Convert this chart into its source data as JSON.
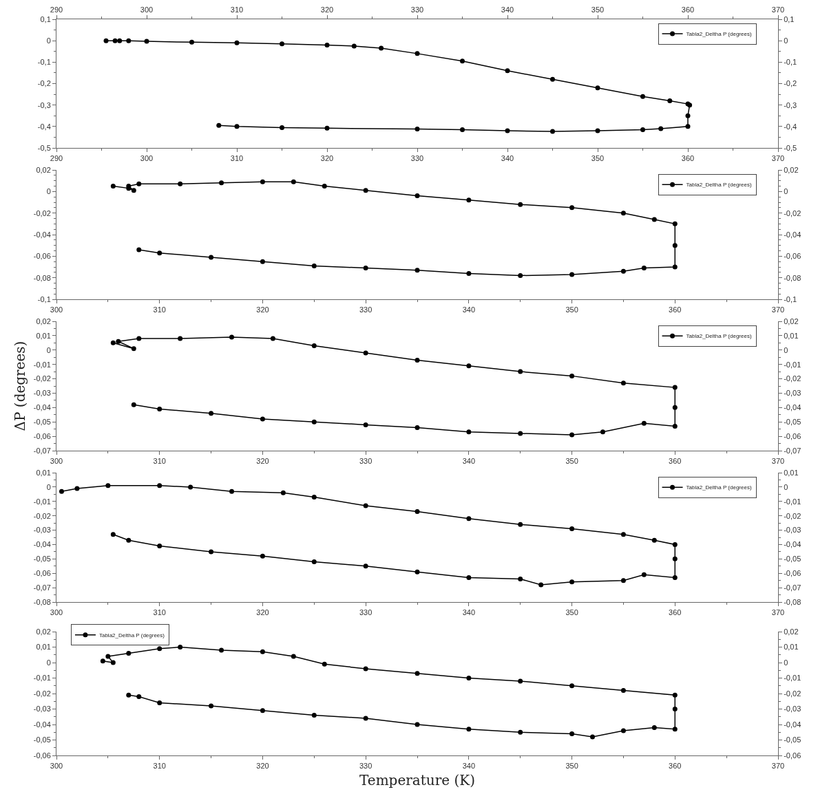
{
  "chart_data": [
    {
      "type": "line",
      "marker": "circle",
      "line_style": "solid",
      "legend": "top right",
      "xlim": [
        290,
        370
      ],
      "xticks": [
        290,
        300,
        310,
        320,
        330,
        340,
        350,
        360,
        370
      ],
      "x2lim": [
        290,
        370
      ],
      "x2ticks": [
        290,
        300,
        310,
        320,
        330,
        340,
        350,
        360,
        370
      ],
      "ylim": [
        -0.5,
        0.1
      ],
      "yticks": [
        {
          "value": -0.5,
          "label": "-0,5"
        },
        {
          "value": -0.4,
          "label": "-0,4"
        },
        {
          "value": -0.3,
          "label": "-0,3"
        },
        {
          "value": -0.2,
          "label": "-0,2"
        },
        {
          "value": -0.1,
          "label": "-0,1"
        },
        {
          "value": 0,
          "label": "0"
        },
        {
          "value": 0.1,
          "label": "0,1"
        }
      ],
      "y2lim": [
        -0.5,
        0.1
      ],
      "y2ticks": [
        {
          "value": -0.5,
          "label": "-0,5"
        },
        {
          "value": -0.4,
          "label": "-0,4"
        },
        {
          "value": -0.3,
          "label": "-0,3"
        },
        {
          "value": -0.2,
          "label": "-0,2"
        },
        {
          "value": -0.1,
          "label": "-0,1"
        },
        {
          "value": 0,
          "label": "0"
        },
        {
          "value": 0.1,
          "label": "0,1"
        }
      ],
      "series": [
        {
          "name": "Tabla2_Deltha P (degrees)",
          "color": "#000000",
          "x": [
            295.5,
            296.5,
            297,
            298,
            300,
            305,
            310,
            315,
            320,
            323,
            326,
            330,
            335,
            340,
            345,
            350,
            355,
            358,
            360,
            360.2,
            360,
            360,
            357,
            355,
            350,
            345,
            340,
            335,
            330,
            320,
            315,
            310,
            308
          ],
          "values": [
            0,
            0,
            0,
            0,
            -0.003,
            -0.007,
            -0.01,
            -0.015,
            -0.02,
            -0.025,
            -0.035,
            -0.06,
            -0.095,
            -0.14,
            -0.18,
            -0.22,
            -0.26,
            -0.28,
            -0.295,
            -0.3,
            -0.35,
            -0.4,
            -0.41,
            -0.415,
            -0.42,
            -0.423,
            -0.42,
            -0.415,
            -0.412,
            -0.408,
            -0.405,
            -0.4,
            -0.395
          ]
        }
      ]
    },
    {
      "type": "line",
      "marker": "circle",
      "line_style": "solid",
      "legend": "top right",
      "xlim": [
        300,
        370
      ],
      "xticks": [
        300,
        310,
        320,
        330,
        340,
        350,
        360,
        370
      ],
      "ylim": [
        -0.1,
        0.02
      ],
      "yticks": [
        {
          "value": -0.1,
          "label": "-0,1"
        },
        {
          "value": -0.08,
          "label": "-0,08"
        },
        {
          "value": -0.06,
          "label": "-0,06"
        },
        {
          "value": -0.04,
          "label": "-0,04"
        },
        {
          "value": -0.02,
          "label": "-0,02"
        },
        {
          "value": 0,
          "label": "0"
        },
        {
          "value": 0.02,
          "label": "0,02"
        }
      ],
      "y2lim": [
        -0.1,
        0.02
      ],
      "y2ticks": [
        {
          "value": -0.1,
          "label": "-0,1"
        },
        {
          "value": -0.08,
          "label": "-0,08"
        },
        {
          "value": -0.06,
          "label": "-0,06"
        },
        {
          "value": -0.04,
          "label": "-0,04"
        },
        {
          "value": -0.02,
          "label": "-0,02"
        },
        {
          "value": 0,
          "label": "0"
        },
        {
          "value": 0.02,
          "label": "0,02"
        }
      ],
      "series": [
        {
          "name": "Tabla2_Deltha P (degrees)",
          "color": "#000000",
          "x": [
            305.5,
            307,
            307.5,
            307,
            308,
            312,
            316,
            320,
            323,
            326,
            330,
            335,
            340,
            345,
            350,
            355,
            358,
            360,
            360,
            360,
            357,
            355,
            350,
            345,
            340,
            335,
            330,
            325,
            320,
            315,
            310,
            308
          ],
          "values": [
            0.005,
            0.003,
            0.001,
            0.005,
            0.007,
            0.007,
            0.008,
            0.009,
            0.009,
            0.005,
            0.001,
            -0.004,
            -0.008,
            -0.012,
            -0.015,
            -0.02,
            -0.026,
            -0.03,
            -0.05,
            -0.07,
            -0.071,
            -0.074,
            -0.077,
            -0.078,
            -0.076,
            -0.073,
            -0.071,
            -0.069,
            -0.065,
            -0.061,
            -0.057,
            -0.054
          ]
        }
      ]
    },
    {
      "type": "line",
      "marker": "circle",
      "line_style": "solid",
      "legend": "top right",
      "ylabel": "ΔP (degrees)",
      "xlim": [
        300,
        370
      ],
      "xticks": [
        300,
        310,
        320,
        330,
        340,
        350,
        360,
        370
      ],
      "ylim": [
        -0.07,
        0.02
      ],
      "yticks": [
        {
          "value": -0.07,
          "label": "-0,07"
        },
        {
          "value": -0.06,
          "label": "-0,06"
        },
        {
          "value": -0.05,
          "label": "-0,05"
        },
        {
          "value": -0.04,
          "label": "-0,04"
        },
        {
          "value": -0.03,
          "label": "-0,03"
        },
        {
          "value": -0.02,
          "label": "-0,02"
        },
        {
          "value": -0.01,
          "label": "-0,01"
        },
        {
          "value": 0,
          "label": "0"
        },
        {
          "value": 0.01,
          "label": "0,01"
        },
        {
          "value": 0.02,
          "label": "0,02"
        }
      ],
      "y2lim": [
        -0.07,
        0.02
      ],
      "y2ticks": [
        {
          "value": -0.07,
          "label": "-0,07"
        },
        {
          "value": -0.06,
          "label": "-0,06"
        },
        {
          "value": -0.05,
          "label": "-0,05"
        },
        {
          "value": -0.04,
          "label": "-0,04"
        },
        {
          "value": -0.03,
          "label": "-0,03"
        },
        {
          "value": -0.02,
          "label": "-0,02"
        },
        {
          "value": -0.01,
          "label": "-0,01"
        },
        {
          "value": 0,
          "label": "0"
        },
        {
          "value": 0.01,
          "label": "0,01"
        },
        {
          "value": 0.02,
          "label": "0,02"
        }
      ],
      "series": [
        {
          "name": "Tabla2_Deltha P (degrees)",
          "color": "#000000",
          "x": [
            305.5,
            307.5,
            306,
            308,
            312,
            317,
            321,
            325,
            330,
            335,
            340,
            345,
            350,
            355,
            360,
            360,
            360,
            357,
            353,
            350,
            345,
            340,
            335,
            330,
            325,
            320,
            315,
            310,
            307.5
          ],
          "values": [
            0.005,
            0.001,
            0.006,
            0.008,
            0.008,
            0.009,
            0.008,
            0.003,
            -0.002,
            -0.007,
            -0.011,
            -0.015,
            -0.018,
            -0.023,
            -0.026,
            -0.04,
            -0.053,
            -0.051,
            -0.057,
            -0.059,
            -0.058,
            -0.057,
            -0.054,
            -0.052,
            -0.05,
            -0.048,
            -0.044,
            -0.041,
            -0.038
          ]
        }
      ]
    },
    {
      "type": "line",
      "marker": "circle",
      "line_style": "solid",
      "legend": "top right",
      "xlim": [
        300,
        370
      ],
      "xticks": [
        300,
        310,
        320,
        330,
        340,
        350,
        360,
        370
      ],
      "ylim": [
        -0.08,
        0.01
      ],
      "yticks": [
        {
          "value": -0.08,
          "label": "-0,08"
        },
        {
          "value": -0.07,
          "label": "-0,07"
        },
        {
          "value": -0.06,
          "label": "-0,06"
        },
        {
          "value": -0.05,
          "label": "-0,05"
        },
        {
          "value": -0.04,
          "label": "-0,04"
        },
        {
          "value": -0.03,
          "label": "-0,03"
        },
        {
          "value": -0.02,
          "label": "-0,02"
        },
        {
          "value": -0.01,
          "label": "-0,01"
        },
        {
          "value": 0,
          "label": "0"
        },
        {
          "value": 0.01,
          "label": "0,01"
        }
      ],
      "y2lim": [
        -0.08,
        0.01
      ],
      "y2ticks": [
        {
          "value": -0.08,
          "label": "-0,08"
        },
        {
          "value": -0.07,
          "label": "-0,07"
        },
        {
          "value": -0.06,
          "label": "-0,06"
        },
        {
          "value": -0.05,
          "label": "-0,05"
        },
        {
          "value": -0.04,
          "label": "-0,04"
        },
        {
          "value": -0.03,
          "label": "-0,03"
        },
        {
          "value": -0.02,
          "label": "-0,02"
        },
        {
          "value": -0.01,
          "label": "-0,01"
        },
        {
          "value": 0,
          "label": "0"
        },
        {
          "value": 0.01,
          "label": "0,01"
        }
      ],
      "series": [
        {
          "name": "Tabla2_Deltha P (degrees)",
          "color": "#000000",
          "x": [
            300.5,
            302,
            305,
            310,
            313,
            317,
            322,
            325,
            330,
            335,
            340,
            345,
            350,
            355,
            358,
            360,
            360,
            360,
            357,
            355,
            350,
            347,
            345,
            340,
            335,
            330,
            325,
            320,
            315,
            310,
            307,
            305.5
          ],
          "values": [
            -0.003,
            -0.001,
            0.001,
            0.001,
            0,
            -0.003,
            -0.004,
            -0.007,
            -0.013,
            -0.017,
            -0.022,
            -0.026,
            -0.029,
            -0.033,
            -0.037,
            -0.04,
            -0.05,
            -0.063,
            -0.061,
            -0.065,
            -0.066,
            -0.068,
            -0.064,
            -0.063,
            -0.059,
            -0.055,
            -0.052,
            -0.048,
            -0.045,
            -0.041,
            -0.037,
            -0.033
          ]
        }
      ]
    },
    {
      "type": "line",
      "marker": "circle",
      "line_style": "solid",
      "legend": "top left",
      "xlabel": "Temperature (K)",
      "xlim": [
        300,
        370
      ],
      "xticks": [
        300,
        310,
        320,
        330,
        340,
        350,
        360,
        370
      ],
      "ylim": [
        -0.06,
        0.02
      ],
      "yticks": [
        {
          "value": -0.06,
          "label": "-0,06"
        },
        {
          "value": -0.05,
          "label": "-0,05"
        },
        {
          "value": -0.04,
          "label": "-0,04"
        },
        {
          "value": -0.03,
          "label": "-0,03"
        },
        {
          "value": -0.02,
          "label": "-0,02"
        },
        {
          "value": -0.01,
          "label": "-0,01"
        },
        {
          "value": 0,
          "label": "0"
        },
        {
          "value": 0.01,
          "label": "0,01"
        },
        {
          "value": 0.02,
          "label": "0,02"
        }
      ],
      "y2lim": [
        -0.06,
        0.02
      ],
      "y2ticks": [
        {
          "value": -0.06,
          "label": "-0,06"
        },
        {
          "value": -0.05,
          "label": "-0,05"
        },
        {
          "value": -0.04,
          "label": "-0,04"
        },
        {
          "value": -0.03,
          "label": "-0,03"
        },
        {
          "value": -0.02,
          "label": "-0,02"
        },
        {
          "value": -0.01,
          "label": "-0,01"
        },
        {
          "value": 0,
          "label": "0"
        },
        {
          "value": 0.01,
          "label": "0,01"
        },
        {
          "value": 0.02,
          "label": "0,02"
        }
      ],
      "series": [
        {
          "name": "Tabla2_Deltha P (degrees)",
          "color": "#000000",
          "x": [
            304.5,
            305.5,
            305,
            307,
            310,
            312,
            316,
            320,
            323,
            326,
            330,
            335,
            340,
            345,
            350,
            355,
            360,
            360,
            360,
            358,
            355,
            352,
            350,
            345,
            340,
            335,
            330,
            325,
            320,
            315,
            310,
            308,
            307
          ],
          "values": [
            0.001,
            0,
            0.004,
            0.006,
            0.009,
            0.01,
            0.008,
            0.007,
            0.004,
            -0.001,
            -0.004,
            -0.007,
            -0.01,
            -0.012,
            -0.015,
            -0.018,
            -0.021,
            -0.03,
            -0.043,
            -0.042,
            -0.044,
            -0.048,
            -0.046,
            -0.045,
            -0.043,
            -0.04,
            -0.036,
            -0.034,
            -0.031,
            -0.028,
            -0.026,
            -0.022,
            -0.021
          ]
        }
      ]
    }
  ]
}
